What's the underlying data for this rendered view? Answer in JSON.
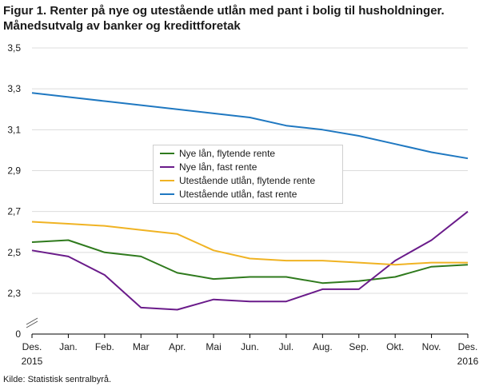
{
  "header": {
    "title_line1": "Figur 1. Renter på nye og utestående utlån med pant i bolig til husholdninger.",
    "title_line2": "Månedsutvalg av banker og kredittforetak"
  },
  "footer": {
    "source": "Kilde: Statistisk sentralbyrå."
  },
  "chart_data": {
    "type": "line",
    "categories": [
      "Des.",
      "Jan.",
      "Feb.",
      "Mar",
      "Apr.",
      "Mai",
      "Jun.",
      "Jul.",
      "Aug.",
      "Sep.",
      "Okt.",
      "Nov.",
      "Des."
    ],
    "category_sublabels": {
      "0": "2015",
      "12": "2016"
    },
    "y_ticks": [
      "0",
      "2,3",
      "2,5",
      "2,7",
      "2,9",
      "3,1",
      "3,3",
      "3,5"
    ],
    "ylim": [
      2.1,
      3.5
    ],
    "y_axis_break": true,
    "grid": true,
    "legend_position": "center-left",
    "series": [
      {
        "name": "Nye lån, flytende rente",
        "color": "#2f7a1d",
        "values": [
          2.55,
          2.56,
          2.5,
          2.48,
          2.4,
          2.37,
          2.38,
          2.38,
          2.35,
          2.36,
          2.38,
          2.43,
          2.44
        ]
      },
      {
        "name": "Nye lån, fast rente",
        "color": "#6a1b8a",
        "values": [
          2.51,
          2.48,
          2.39,
          2.23,
          2.22,
          2.27,
          2.26,
          2.26,
          2.32,
          2.32,
          2.46,
          2.56,
          2.7
        ]
      },
      {
        "name": "Utestående utlån, flytende rente",
        "color": "#f0b323",
        "values": [
          2.65,
          2.64,
          2.63,
          2.61,
          2.59,
          2.51,
          2.47,
          2.46,
          2.46,
          2.45,
          2.44,
          2.45,
          2.45
        ]
      },
      {
        "name": "Utestående utlån, fast rente",
        "color": "#1f78c1",
        "values": [
          3.28,
          3.26,
          3.24,
          3.22,
          3.2,
          3.18,
          3.16,
          3.12,
          3.1,
          3.07,
          3.03,
          2.99,
          2.96
        ]
      }
    ]
  }
}
